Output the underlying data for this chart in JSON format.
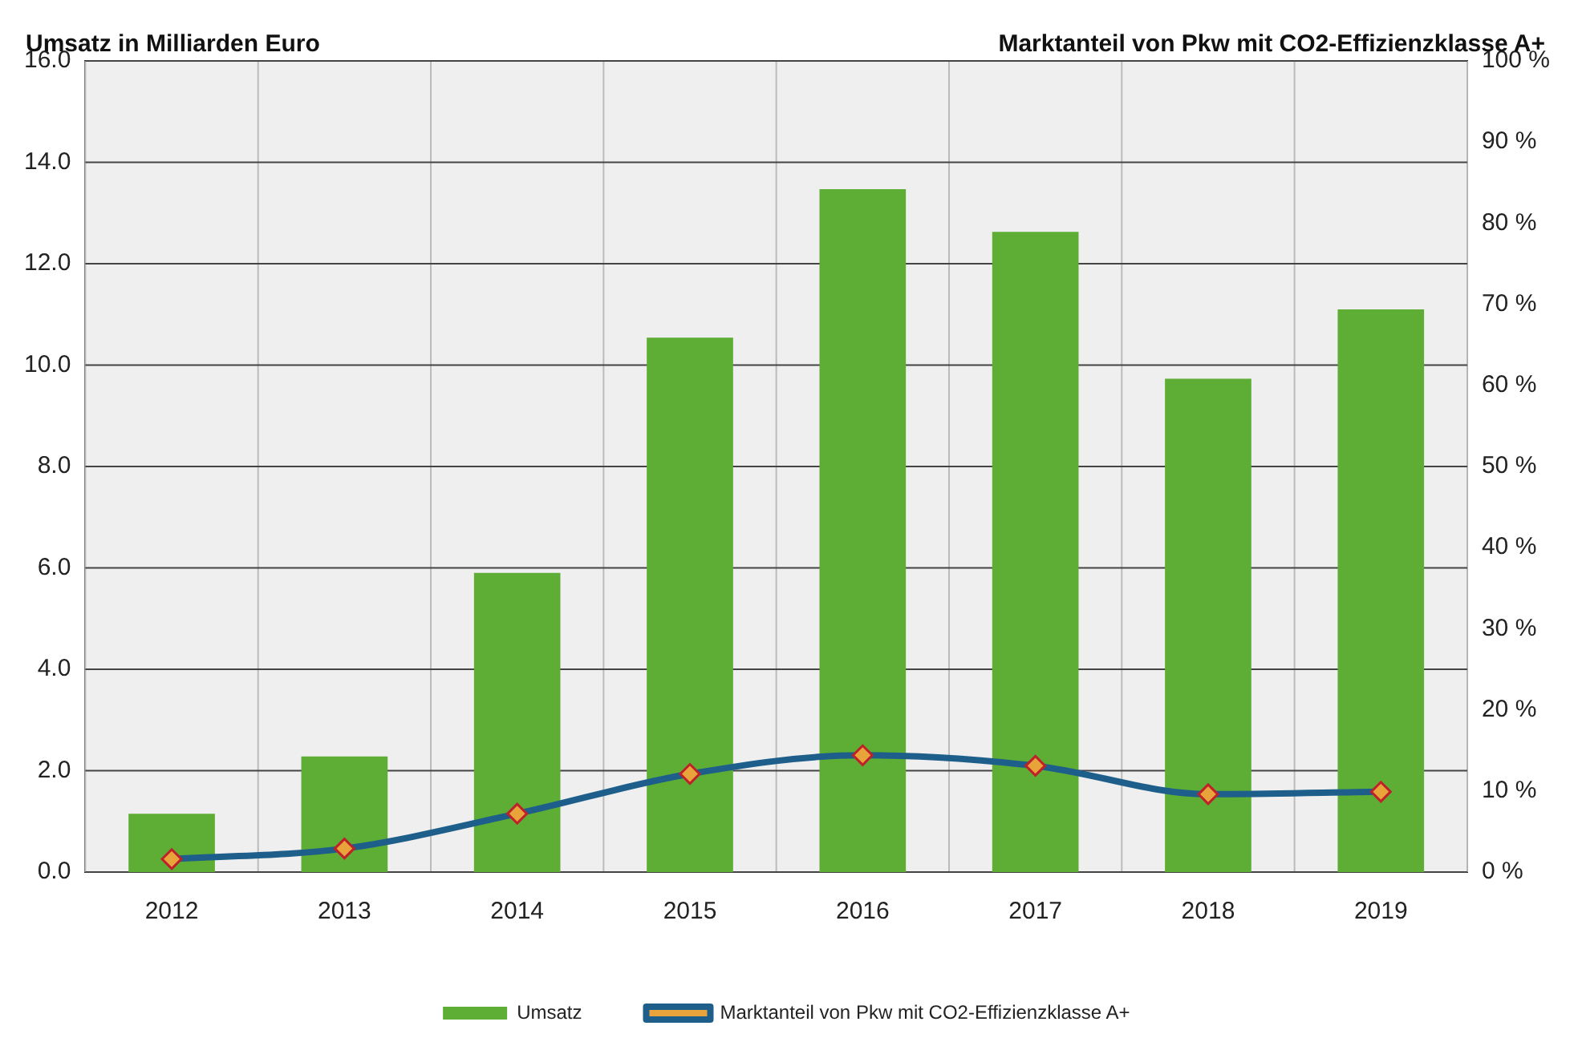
{
  "chart_data": {
    "type": "bar",
    "ylabel": "Umsatz in Milliarden Euro",
    "y2label": "Marktanteil von Pkw mit CO2-Effizienzklasse A+",
    "categories": [
      "2012",
      "2013",
      "2014",
      "2015",
      "2016",
      "2017",
      "2018",
      "2019"
    ],
    "series": [
      {
        "name": "Umsatz",
        "color": "#5eae35",
        "values": [
          1.15,
          2.28,
          5.9,
          10.54,
          13.47,
          12.63,
          9.73,
          11.1
        ]
      },
      {
        "name": "Marktanteil von Pkw mit CO2-Effizienzklasse A+",
        "type": "line",
        "axis": "y2",
        "color": "#1d5f8a",
        "marker": "diamond",
        "values": [
          1.6,
          2.9,
          7.2,
          12.1,
          14.4,
          13.1,
          9.6,
          9.9
        ]
      }
    ],
    "ylim": [
      0,
      16
    ],
    "yticks": [
      {
        "value": 0,
        "label": "0.0"
      },
      {
        "value": 2,
        "label": "2.0"
      },
      {
        "value": 4,
        "label": "4.0"
      },
      {
        "value": 6,
        "label": "6.0"
      },
      {
        "value": 8,
        "label": "8.0"
      },
      {
        "value": 10,
        "label": "10.0"
      },
      {
        "value": 12,
        "label": "12.0"
      },
      {
        "value": 14,
        "label": "14.0"
      },
      {
        "value": 16,
        "label": "16.0"
      }
    ],
    "y2lim": [
      0,
      100
    ],
    "y2ticks": [
      {
        "value": 0,
        "label": "0 %"
      },
      {
        "value": 10,
        "label": "10 %"
      },
      {
        "value": 20,
        "label": "20 %"
      },
      {
        "value": 30,
        "label": "30 %"
      },
      {
        "value": 40,
        "label": "40 %"
      },
      {
        "value": 50,
        "label": "50 %"
      },
      {
        "value": 60,
        "label": "60 %"
      },
      {
        "value": 70,
        "label": "70 %"
      },
      {
        "value": 80,
        "label": "80 %"
      },
      {
        "value": 90,
        "label": "90 %"
      },
      {
        "value": 100,
        "label": "100 %"
      }
    ],
    "grid": true,
    "legend": "bottom"
  }
}
